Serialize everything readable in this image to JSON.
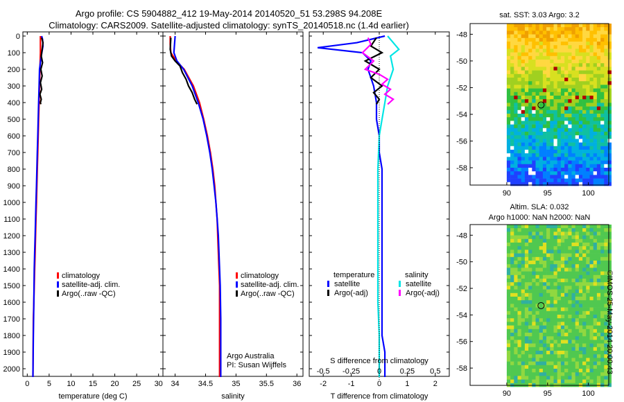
{
  "header": {
    "title_line1": "Argo profile: CS 5904882_412 19-May-2014 20140520_51 53.298S 94.208E",
    "title_line2": "Climatology: CARS2009. Satellite-adjusted climatology: synTS_20140518.nc (1.4d earlier)"
  },
  "depth_ticks": [
    "0",
    "100",
    "200",
    "300",
    "400",
    "500",
    "600",
    "700",
    "800",
    "900",
    "1000",
    "1100",
    "1200",
    "1300",
    "1400",
    "1500",
    "1600",
    "1700",
    "1800",
    "1900",
    "2000"
  ],
  "chart_data": [
    {
      "type": "line",
      "id": "temperature",
      "xlabel": "temperature (deg C)",
      "ylabel": "depth (dbar)",
      "xlim": [
        -1,
        31
      ],
      "ylim": [
        0,
        2070
      ],
      "xticks": [
        "0",
        "5",
        "10",
        "15",
        "20",
        "25",
        "30"
      ],
      "xtick_values": [
        0,
        5,
        10,
        15,
        20,
        25,
        30
      ],
      "legend": [
        "climatology",
        "satellite-adj. clim.",
        "Argo(..raw -QC)"
      ],
      "series": [
        {
          "name": "climatology",
          "color": "#ff0000",
          "x": [
            3.0,
            3.0,
            2.9,
            2.8,
            2.7,
            2.6,
            2.5,
            2.4,
            2.3,
            2.2,
            2.1,
            2.0,
            1.9,
            1.8,
            1.7,
            1.6,
            1.5,
            1.4,
            1.3
          ],
          "y": [
            0,
            100,
            200,
            300,
            400,
            500,
            600,
            700,
            800,
            900,
            1000,
            1100,
            1200,
            1300,
            1400,
            1500,
            1600,
            1700,
            2050
          ]
        },
        {
          "name": "satellite-adj. clim.",
          "color": "#0000ff",
          "x": [
            3.3,
            3.5,
            3.6,
            3.2,
            2.8,
            2.7,
            2.6,
            2.5,
            2.4,
            2.3,
            2.2,
            2.1,
            2.0,
            1.9,
            1.8,
            1.7,
            1.6,
            1.5,
            1.4,
            1.3
          ],
          "y": [
            0,
            20,
            60,
            120,
            200,
            300,
            400,
            500,
            600,
            700,
            800,
            900,
            1000,
            1100,
            1200,
            1300,
            1400,
            1600,
            1800,
            2050
          ]
        },
        {
          "name": "Argo(..raw -QC)",
          "color": "#000000",
          "x": [
            3.3,
            3.6,
            3.4,
            3.2,
            3.5,
            3.1,
            3.4,
            3.0,
            3.3,
            2.9,
            3.2,
            3.0,
            3.1
          ],
          "y": [
            10,
            40,
            80,
            120,
            160,
            200,
            240,
            280,
            320,
            350,
            380,
            400,
            410
          ]
        }
      ]
    },
    {
      "type": "line",
      "id": "salinity",
      "xlabel": "salinity",
      "ylabel": "depth (dbar)",
      "xlim": [
        33.8,
        36.1
      ],
      "ylim": [
        0,
        2070
      ],
      "xticks": [
        "34",
        "34.5",
        "35",
        "35.5",
        "36"
      ],
      "xtick_values": [
        34,
        34.5,
        35,
        35.5,
        36
      ],
      "legend": [
        "climatology",
        "satellite-adj. clim.",
        "Argo(..raw -QC)"
      ],
      "annotations": [
        "Argo Australia",
        "PI: Susan Wijffels"
      ],
      "series": [
        {
          "name": "climatology",
          "color": "#ff0000",
          "x": [
            33.92,
            33.92,
            33.93,
            34.02,
            34.15,
            34.3,
            34.4,
            34.47,
            34.53,
            34.58,
            34.62,
            34.65,
            34.67,
            34.69,
            34.7,
            34.71,
            34.72,
            34.73,
            34.73,
            34.73
          ],
          "y": [
            0,
            50,
            100,
            150,
            200,
            300,
            400,
            500,
            600,
            700,
            800,
            900,
            1000,
            1100,
            1200,
            1300,
            1400,
            1500,
            1700,
            2050
          ]
        },
        {
          "name": "satellite-adj. clim.",
          "color": "#0000ff",
          "x": [
            34.0,
            33.99,
            33.98,
            34.03,
            34.14,
            34.28,
            34.38,
            34.46,
            34.52,
            34.57,
            34.61,
            34.64,
            34.67,
            34.69,
            34.71,
            34.72,
            34.73,
            34.74,
            34.75,
            34.75
          ],
          "y": [
            0,
            50,
            100,
            150,
            200,
            300,
            400,
            500,
            600,
            700,
            800,
            900,
            1000,
            1100,
            1200,
            1300,
            1400,
            1500,
            1700,
            2050
          ]
        },
        {
          "name": "Argo(..raw -QC)",
          "color": "#000000",
          "x": [
            33.93,
            33.92,
            33.94,
            34.0,
            34.08,
            34.12,
            34.18,
            34.22,
            34.28,
            34.32,
            34.36
          ],
          "y": [
            10,
            80,
            120,
            150,
            180,
            220,
            260,
            300,
            340,
            380,
            410
          ]
        }
      ]
    },
    {
      "type": "line",
      "id": "difference",
      "xlabel": "T difference from climatology",
      "xlabel2": "S difference from climatology",
      "xlim": [
        -2.5,
        2.5
      ],
      "ylim": [
        0,
        2070
      ],
      "xticks": [
        "-2",
        "-1",
        "0",
        "1",
        "2"
      ],
      "xtick_values": [
        -2,
        -1,
        0,
        1,
        2
      ],
      "xticks_top": [
        "-0.5",
        "-0.25",
        "0",
        "0.25",
        "0.5"
      ],
      "xticks_top_values": [
        -2,
        -1,
        0,
        1,
        2
      ],
      "legend": [
        "temperature",
        "satellite",
        "Argo(-adj)",
        "salinity",
        "satellite",
        "Argo(-adj)"
      ],
      "series": [
        {
          "name": "temperature satellite",
          "color": "#0000ff",
          "x": [
            0.2,
            -0.8,
            -2.2,
            -0.6,
            -0.3,
            -0.4,
            -0.2,
            -0.1,
            -0.1,
            0.0,
            0.0,
            0.1,
            0.1,
            0.1,
            0.1,
            0.1,
            0.1,
            0.1,
            0.2,
            0.2
          ],
          "y": [
            0,
            40,
            70,
            100,
            150,
            200,
            300,
            400,
            500,
            600,
            700,
            800,
            900,
            1000,
            1200,
            1400,
            1600,
            1800,
            1900,
            2050
          ]
        },
        {
          "name": "salinity satellite",
          "color": "#00e5e5",
          "x": [
            0.3,
            0.5,
            0.7,
            0.4,
            0.5,
            0.3,
            0.2,
            0.1,
            0.0,
            -0.05,
            -0.05,
            -0.05,
            -0.05,
            -0.05,
            0.0,
            0.0
          ],
          "y": [
            0,
            40,
            80,
            120,
            200,
            300,
            400,
            500,
            600,
            800,
            1000,
            1200,
            1400,
            1600,
            1800,
            2050
          ]
        },
        {
          "name": "temperature Argo(-adj)",
          "color": "#000000",
          "x": [
            -0.1,
            -0.3,
            0.1,
            -0.5,
            0.0,
            -0.3,
            0.1,
            -0.2,
            0.0,
            -0.1
          ],
          "y": [
            10,
            60,
            100,
            150,
            200,
            250,
            300,
            340,
            380,
            410
          ]
        },
        {
          "name": "salinity Argo(-adj)",
          "color": "#ff00ff",
          "x": [
            -0.4,
            -0.3,
            -0.6,
            -0.2,
            -0.5,
            0.0,
            0.3,
            0.1,
            0.4,
            0.2,
            0.5,
            0.3
          ],
          "y": [
            10,
            50,
            100,
            150,
            200,
            230,
            260,
            290,
            320,
            350,
            380,
            410
          ]
        },
        {
          "name": "zero",
          "color": "#000000",
          "dotted": true,
          "x": [
            0,
            0
          ],
          "y": [
            0,
            2070
          ]
        }
      ]
    }
  ],
  "maps": [
    {
      "id": "sst",
      "title": "sat. SST: 3.03 Argo: 3.2",
      "lat_ticks": [
        "-48",
        "-50",
        "-52",
        "-54",
        "-56",
        "-58"
      ],
      "lat_values": [
        -48,
        -50,
        -52,
        -54,
        -56,
        -58
      ],
      "lon_ticks": [
        "90",
        "95",
        "100"
      ],
      "lon_values": [
        90,
        95,
        100
      ],
      "lon_range": [
        85.5,
        102.5
      ],
      "lat_range": [
        -59.3,
        -47.2
      ],
      "marker": {
        "lon": 94.2,
        "lat": -53.3
      }
    },
    {
      "id": "sla",
      "title1": "Altim. SLA: 0.032",
      "title2": "Argo h1000: NaN h2000: NaN",
      "lat_ticks": [
        "-48",
        "-50",
        "-52",
        "-54",
        "-56",
        "-58"
      ],
      "lat_values": [
        -48,
        -50,
        -52,
        -54,
        -56,
        -58
      ],
      "lon_ticks": [
        "90",
        "95",
        "100"
      ],
      "lon_values": [
        90,
        95,
        100
      ],
      "lon_range": [
        85.5,
        102.5
      ],
      "lat_range": [
        -59.3,
        -47.2
      ],
      "marker": {
        "lon": 94.2,
        "lat": -53.3
      }
    }
  ],
  "stamp": "©IMOS 25-May-2014 20:00:43"
}
